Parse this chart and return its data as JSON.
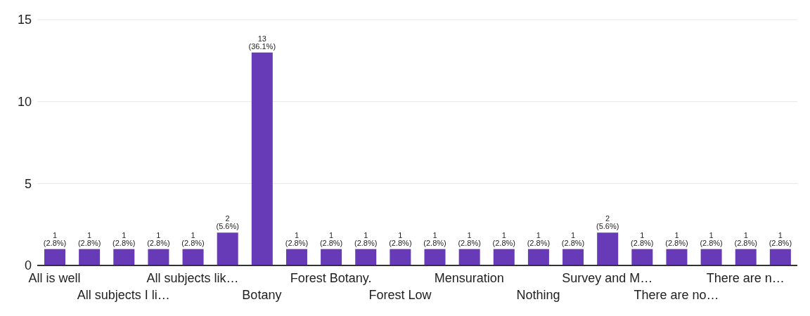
{
  "chart_data": {
    "type": "bar",
    "categories": [
      "All is well",
      null,
      "All subjects I li…",
      null,
      "All subjects lik…",
      null,
      "Botany",
      null,
      "Forest Botany.",
      null,
      "Forest Low",
      null,
      "Mensuration",
      null,
      "Nothing",
      null,
      "Survey and M…",
      null,
      "There are no…",
      null,
      "There are n…",
      null
    ],
    "values": [
      1,
      1,
      1,
      1,
      1,
      2,
      13,
      1,
      1,
      1,
      1,
      1,
      1,
      1,
      1,
      1,
      2,
      1,
      1,
      1,
      1,
      1
    ],
    "value_labels": [
      "1 (2.8%)",
      "1 (2.8%)",
      "1 (2.8%)",
      "1 (2.8%)",
      "1 (2.8%)",
      "2 (5.6%)",
      "13 (36.1%)",
      "1 (2.8%)",
      "1 (2.8%)",
      "1 (2.8%)",
      "1 (2.8%)",
      "1 (2.8%)",
      "1 (2.8%)",
      "1 (2.8%)",
      "1 (2.8%)",
      "1 (2.8%)",
      "2 (5.6%)",
      "1 (2.8%)",
      "1 (2.8%)",
      "1 (2.8%)",
      "1 (2.8%)",
      "1 (2.8%)"
    ],
    "color": "#673ab7",
    "ylim": [
      0,
      15
    ],
    "yticks": [
      0,
      5,
      10,
      15
    ],
    "grid": "y",
    "legend": false
  }
}
